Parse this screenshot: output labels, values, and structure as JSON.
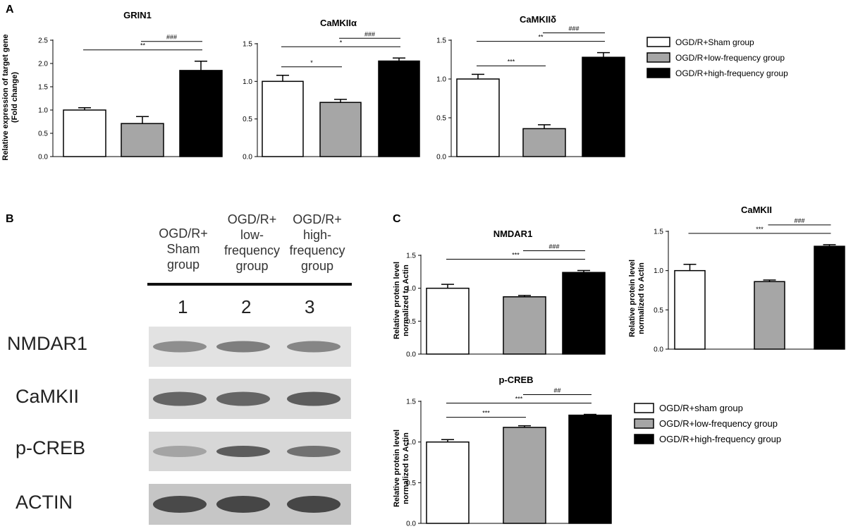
{
  "panel_labels": {
    "a": "A",
    "b": "B",
    "c": "C"
  },
  "panelA_ylabel": [
    "Relative expression of target gene",
    "(Fold change)"
  ],
  "panelC_ylabel": [
    "Relative protein level",
    "normalized to Actin"
  ],
  "legendA": [
    {
      "label": "OGD/R+Sham group",
      "color": "#ffffff"
    },
    {
      "label": "OGD/R+low-frequency group",
      "color": "#a6a6a6"
    },
    {
      "label": "OGD/R+high-frequency group",
      "color": "#000000"
    }
  ],
  "legendC": [
    {
      "label": "OGD/R+sham group",
      "color": "#ffffff"
    },
    {
      "label": "OGD/R+low-frequency group",
      "color": "#a6a6a6"
    },
    {
      "label": "OGD/R+high-frequency group",
      "color": "#000000"
    }
  ],
  "blot": {
    "group_headers": [
      [
        "OGD/R+",
        "Sham",
        "group"
      ],
      [
        "OGD/R+",
        "low-",
        "frequency",
        "group"
      ],
      [
        "OGD/R+",
        "high-",
        "frequency",
        "group"
      ]
    ],
    "lane_numbers": [
      "1",
      "2",
      "3"
    ],
    "rows": [
      "NMDAR1",
      "CaMKII",
      "p-CREB",
      "ACTIN"
    ]
  },
  "chart_data": [
    {
      "type": "bar",
      "title": "GRIN1",
      "categories": [
        "OGD/R+Sham group",
        "OGD/R+low-frequency group",
        "OGD/R+high-frequency group"
      ],
      "values": [
        1.0,
        0.71,
        1.85
      ],
      "errors": [
        0.05,
        0.15,
        0.2
      ],
      "ylim": [
        0,
        2.5
      ],
      "yticks": [
        "0.0",
        "0.5",
        "1.0",
        "1.5",
        "2.0",
        "2.5"
      ],
      "annotations": [
        {
          "from": 0,
          "to": 2,
          "label": "**"
        },
        {
          "from": 1,
          "to": 2,
          "label": "###"
        }
      ]
    },
    {
      "type": "bar",
      "title": "CaMKIIα",
      "categories": [
        "OGD/R+Sham group",
        "OGD/R+low-frequency group",
        "OGD/R+high-frequency group"
      ],
      "values": [
        1.0,
        0.72,
        1.27
      ],
      "errors": [
        0.08,
        0.04,
        0.04
      ],
      "ylim": [
        0,
        1.5
      ],
      "yticks": [
        "0.0",
        "0.5",
        "1.0",
        "1.5"
      ],
      "annotations": [
        {
          "from": 0,
          "to": 1,
          "label": "*"
        },
        {
          "from": 0,
          "to": 2,
          "label": "*"
        },
        {
          "from": 1,
          "to": 2,
          "label": "###"
        }
      ]
    },
    {
      "type": "bar",
      "title": "CaMKIIδ",
      "categories": [
        "OGD/R+Sham group",
        "OGD/R+low-frequency group",
        "OGD/R+high-frequency group"
      ],
      "values": [
        1.0,
        0.36,
        1.28
      ],
      "errors": [
        0.06,
        0.05,
        0.06
      ],
      "ylim": [
        0,
        1.5
      ],
      "yticks": [
        "0.0",
        "0.5",
        "1.0",
        "1.5"
      ],
      "annotations": [
        {
          "from": 0,
          "to": 1,
          "label": "***"
        },
        {
          "from": 0,
          "to": 2,
          "label": "**"
        },
        {
          "from": 1,
          "to": 2,
          "label": "###"
        }
      ]
    },
    {
      "type": "bar",
      "title": "NMDAR1",
      "categories": [
        "OGD/R+sham group",
        "OGD/R+low-frequency group",
        "OGD/R+high-frequency group"
      ],
      "values": [
        1.0,
        0.87,
        1.24
      ],
      "errors": [
        0.06,
        0.02,
        0.03
      ],
      "ylim": [
        0,
        1.5
      ],
      "yticks": [
        "0.0",
        "0.5",
        "1.0",
        "1.5"
      ],
      "annotations": [
        {
          "from": 0,
          "to": 2,
          "label": "***"
        },
        {
          "from": 1,
          "to": 2,
          "label": "###"
        }
      ]
    },
    {
      "type": "bar",
      "title": "CaMKII",
      "categories": [
        "OGD/R+sham group",
        "OGD/R+low-frequency group",
        "OGD/R+high-frequency group"
      ],
      "values": [
        1.0,
        0.86,
        1.31
      ],
      "errors": [
        0.08,
        0.02,
        0.02
      ],
      "ylim": [
        0,
        1.5
      ],
      "yticks": [
        "0.0",
        "0.5",
        "1.0",
        "1.5"
      ],
      "annotations": [
        {
          "from": 0,
          "to": 2,
          "label": "***"
        },
        {
          "from": 1,
          "to": 2,
          "label": "###"
        }
      ]
    },
    {
      "type": "bar",
      "title": "p-CREB",
      "categories": [
        "OGD/R+sham group",
        "OGD/R+low-frequency group",
        "OGD/R+high-frequency group"
      ],
      "values": [
        1.0,
        1.18,
        1.33
      ],
      "errors": [
        0.03,
        0.02,
        0.01
      ],
      "ylim": [
        0,
        1.5
      ],
      "yticks": [
        "0.0",
        "0.5",
        "1.0",
        "1.5"
      ],
      "annotations": [
        {
          "from": 0,
          "to": 1,
          "label": "***"
        },
        {
          "from": 0,
          "to": 2,
          "label": "***"
        },
        {
          "from": 1,
          "to": 2,
          "label": "##"
        }
      ]
    }
  ]
}
